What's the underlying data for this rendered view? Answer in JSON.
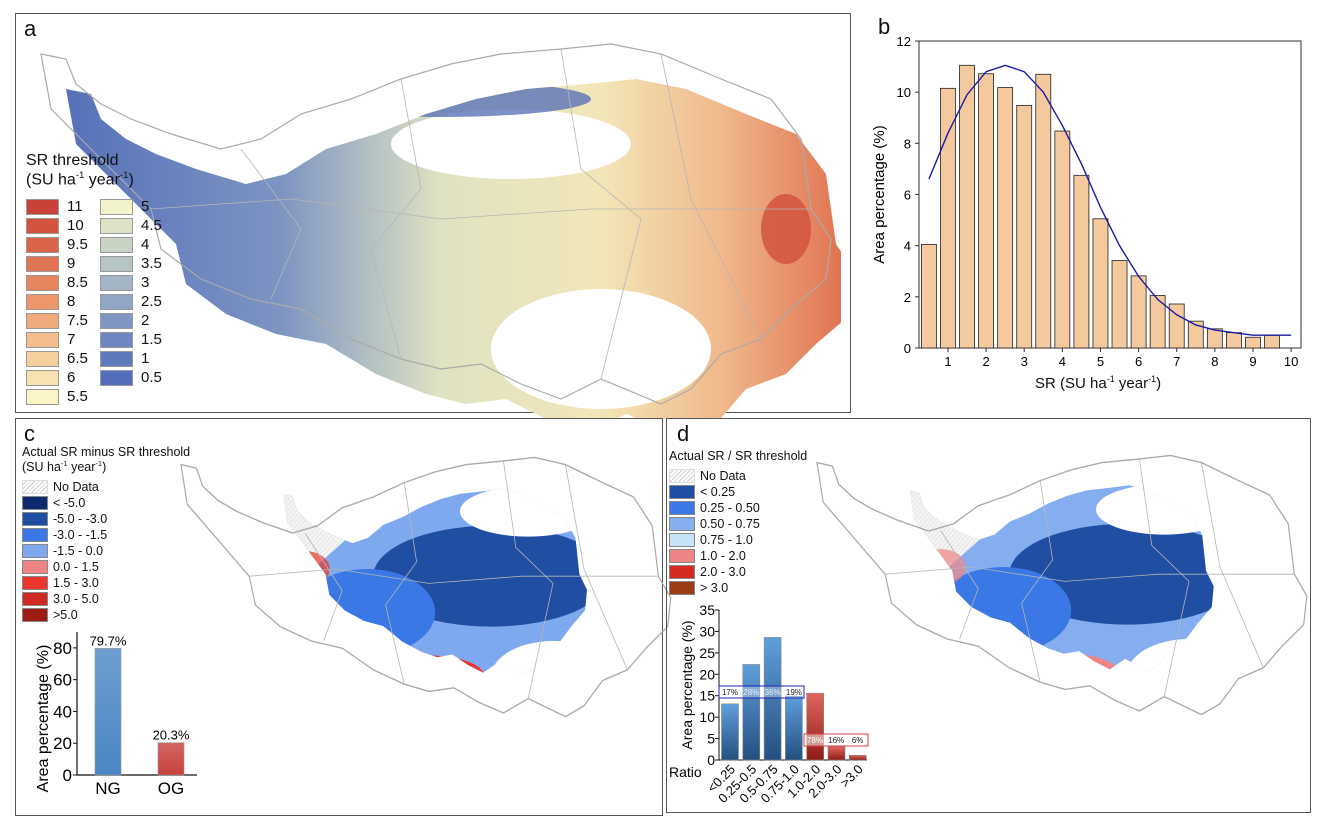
{
  "panels": {
    "a": {
      "letter": "a",
      "legend_title": "SR threshold",
      "unit": {
        "open": "(",
        "b1": "SU ha",
        "s1": "-1",
        "b2": " year",
        "s2": "-1",
        "close": ")"
      },
      "legend": [
        {
          "label": "11",
          "color": "#c8423a"
        },
        {
          "label": "10",
          "color": "#d2543f"
        },
        {
          "label": "9.5",
          "color": "#da6447"
        },
        {
          "label": "9",
          "color": "#e07452"
        },
        {
          "label": "8.5",
          "color": "#e6855e"
        },
        {
          "label": "8",
          "color": "#eb966b"
        },
        {
          "label": "7.5",
          "color": "#f0a97a"
        },
        {
          "label": "7",
          "color": "#f4bd8c"
        },
        {
          "label": "6.5",
          "color": "#f6cf9d"
        },
        {
          "label": "6",
          "color": "#f9e2b2"
        },
        {
          "label": "5.5",
          "color": "#fbf4c7"
        },
        {
          "label": "5",
          "color": "#f2f2cc"
        },
        {
          "label": "4.5",
          "color": "#dde3c6"
        },
        {
          "label": "4",
          "color": "#c8d3c4"
        },
        {
          "label": "3.5",
          "color": "#b6c4c4"
        },
        {
          "label": "3",
          "color": "#a3b4c4"
        },
        {
          "label": "2.5",
          "color": "#91a5c4"
        },
        {
          "label": "2",
          "color": "#8096c2"
        },
        {
          "label": "1.5",
          "color": "#6f87c0"
        },
        {
          "label": "1",
          "color": "#5f79bd"
        },
        {
          "label": "0.5",
          "color": "#526db9"
        }
      ]
    },
    "c": {
      "letter": "c",
      "legend_title": "Actual SR minus SR threshold",
      "unit": {
        "open": "(",
        "b1": "SU ha",
        "s1": "-1",
        "b2": " year",
        "s2": "-1",
        "close": ")"
      },
      "no_data": "No Data",
      "legend": [
        {
          "label": "< -5.0",
          "color": "#0d2a6e"
        },
        {
          "label": "-5.0 - -3.0",
          "color": "#1f4ea3"
        },
        {
          "label": "-3.0 - -1.5",
          "color": "#3a78e6"
        },
        {
          "label": "-1.5 - 0.0",
          "color": "#7fa9ee"
        },
        {
          "label": "0.0 - 1.5",
          "color": "#ee8584"
        },
        {
          "label": "1.5 - 3.0",
          "color": "#e8362c"
        },
        {
          "label": "3.0 - 5.0",
          "color": "#cf2a22"
        },
        {
          "label": ">5.0",
          "color": "#9a1c14"
        }
      ]
    },
    "d": {
      "letter": "d",
      "legend_title": "Actual SR / SR threshold",
      "no_data": "No Data",
      "legend": [
        {
          "label": "< 0.25",
          "color": "#1f4ea3"
        },
        {
          "label": "0.25 - 0.50",
          "color": "#3a78e6"
        },
        {
          "label": "0.50 - 0.75",
          "color": "#85aef0"
        },
        {
          "label": "0.75 - 1.0",
          "color": "#c6e2f7"
        },
        {
          "label": "1.0 - 2.0",
          "color": "#ee8584"
        },
        {
          "label": "2.0 - 3.0",
          "color": "#d52a20"
        },
        {
          "label": "> 3.0",
          "color": "#9a3c14"
        }
      ]
    },
    "b": {
      "letter": "b"
    }
  },
  "chart_data": [
    {
      "id": "b",
      "type": "bar",
      "xlabel": {
        "b1": "SR (SU ha",
        "s1": "-1",
        "b2": " year",
        "s2": "-1",
        "close": ")"
      },
      "ylabel": "Area percentage (%)",
      "x": [
        0.5,
        1,
        1.5,
        2,
        2.5,
        3,
        3.5,
        4,
        4.5,
        5,
        5.5,
        6,
        6.5,
        7,
        7.5,
        8,
        8.5,
        9,
        9.5
      ],
      "values": [
        4.05,
        10.15,
        11.05,
        10.72,
        10.18,
        9.48,
        10.7,
        8.48,
        6.75,
        5.05,
        3.42,
        2.82,
        2.05,
        1.72,
        1.05,
        0.75,
        0.6,
        0.42,
        0.5
      ],
      "bar_color": "#f5c99e",
      "fit_curve": {
        "color": "#1a1aa8",
        "points": [
          [
            0.5,
            6.6
          ],
          [
            1,
            8.4
          ],
          [
            1.5,
            9.9
          ],
          [
            2,
            10.8
          ],
          [
            2.5,
            11.05
          ],
          [
            3,
            10.8
          ],
          [
            3.5,
            10.0
          ],
          [
            4,
            8.7
          ],
          [
            4.5,
            7.2
          ],
          [
            5,
            5.5
          ],
          [
            5.5,
            4.0
          ],
          [
            6,
            2.8
          ],
          [
            6.5,
            1.9
          ],
          [
            7,
            1.3
          ],
          [
            7.5,
            0.9
          ],
          [
            8,
            0.7
          ],
          [
            8.5,
            0.6
          ],
          [
            9,
            0.5
          ],
          [
            10,
            0.5
          ]
        ]
      },
      "xticks": [
        "1",
        "2",
        "3",
        "4",
        "5",
        "6",
        "7",
        "8",
        "9",
        "10"
      ],
      "yticks": [
        "0",
        "2",
        "4",
        "6",
        "8",
        "10",
        "12"
      ],
      "xlim": [
        0.24,
        10.26
      ],
      "ylim": [
        0,
        12
      ]
    },
    {
      "id": "c_inset",
      "type": "bar",
      "ylabel": "Area percentage (%)",
      "categories": [
        "NG",
        "OG"
      ],
      "values": [
        79.7,
        20.3
      ],
      "data_labels": [
        "79.7%",
        "20.3%"
      ],
      "colors": [
        "#4a86c4",
        "#c8403a"
      ],
      "yticks": [
        "0",
        "20",
        "40",
        "60",
        "80"
      ],
      "ylim": [
        0,
        90
      ]
    },
    {
      "id": "d_inset",
      "type": "bar",
      "ylabel": "Area percentage (%)",
      "xlabel": "Ratio",
      "categories": [
        "<0.25",
        "0.25-0.5",
        "0.5-0.75",
        "0.75-1.0",
        "1.0-2.0",
        "2.0-3.0",
        ">3.0"
      ],
      "values": [
        13.1,
        22.3,
        28.6,
        14.9,
        15.6,
        3.2,
        1.1
      ],
      "colors": [
        "#3d79b8",
        "#3d79b8",
        "#3d79b8",
        "#3d79b8",
        "#c43a33",
        "#c43a33",
        "#c43a33"
      ],
      "share_labels_blue": [
        "17%",
        "28%",
        "36%",
        "19%"
      ],
      "share_labels_red": [
        "78%",
        "16%",
        "6%"
      ],
      "yticks": [
        "0",
        "5",
        "10",
        "15",
        "20",
        "25",
        "30",
        "35"
      ],
      "ylim": [
        0,
        35
      ]
    }
  ]
}
